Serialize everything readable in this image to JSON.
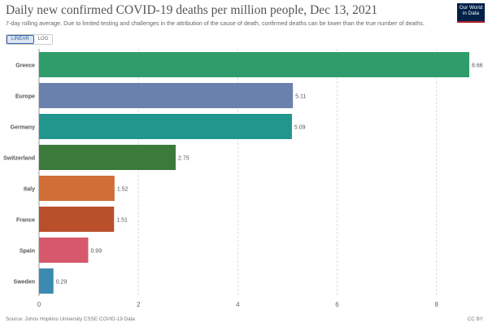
{
  "header": {
    "title": "Daily new confirmed COVID-19 deaths per million people, Dec 13, 2021",
    "subtitle": "7-day rolling average. Due to limited testing and challenges in the attribution of the cause of death, confirmed deaths can be lower than the true number of deaths.",
    "logo_line1": "Our World",
    "logo_line2": "in Data"
  },
  "controls": {
    "linear_label": "LINEAR",
    "log_label": "LOG",
    "selected": "linear"
  },
  "footer": {
    "source": "Source: Johns Hopkins University CSSE COVID-19 Data",
    "license": "CC BY"
  },
  "chart_data": {
    "type": "bar",
    "orientation": "horizontal",
    "categories": [
      "Greece",
      "Europe",
      "Germany",
      "Switzerland",
      "Italy",
      "France",
      "Spain",
      "Sweden"
    ],
    "values": [
      8.66,
      5.11,
      5.09,
      2.75,
      1.52,
      1.51,
      0.99,
      0.29
    ],
    "value_labels": [
      "8.66",
      "5.11",
      "5.09",
      "2.75",
      "1.52",
      "1.51",
      "0.99",
      "0.29"
    ],
    "colors": [
      "#2f9c6b",
      "#6b81ad",
      "#22958d",
      "#3b7a3a",
      "#cf6e36",
      "#b94f2b",
      "#d5596a",
      "#3c8ab1"
    ],
    "xlim": [
      0,
      8.66
    ],
    "xticks": [
      0,
      2,
      4,
      6,
      8
    ],
    "grid": "vertical"
  }
}
